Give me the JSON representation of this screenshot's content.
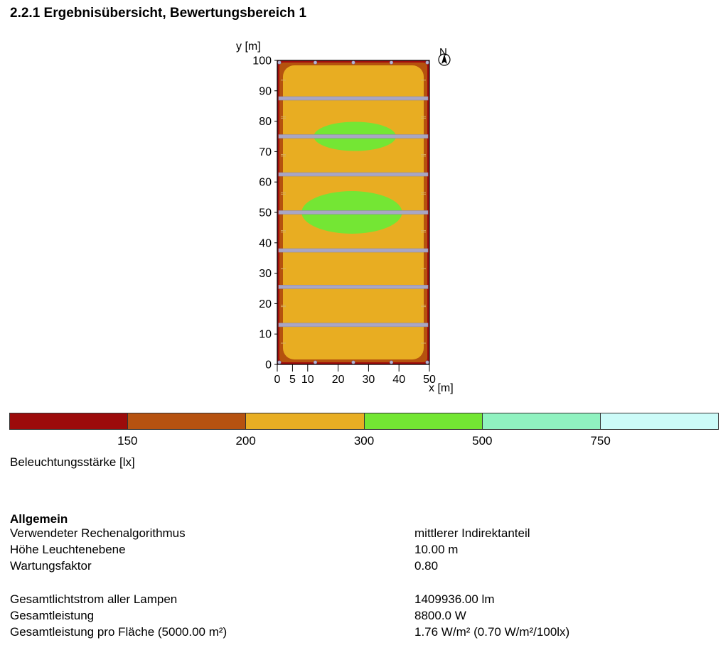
{
  "title": "2.2.1  Ergebnisübersicht, Bewertungsbereich 1",
  "chart_data": {
    "type": "heatmap",
    "xlabel": "x [m]",
    "ylabel": "y [m]",
    "xlim": [
      0,
      50
    ],
    "ylim": [
      0,
      100
    ],
    "x_ticks": [
      "0",
      "5",
      "10",
      "20",
      "30",
      "40",
      "50"
    ],
    "y_ticks": [
      "0",
      "10",
      "20",
      "30",
      "40",
      "50",
      "60",
      "70",
      "80",
      "90",
      "100"
    ],
    "north_label": "N",
    "luminaire_rows_y": [
      13,
      25.5,
      37.5,
      50,
      62.5,
      75,
      87.5
    ],
    "zones": {
      "edge_dark": "#a00d0d",
      "edge_mid": "#b5520e",
      "field": "#e8ad22",
      "high": "#74e634"
    }
  },
  "legend": {
    "colors": [
      "#9c0b0b",
      "#b65210",
      "#e8ae23",
      "#73e633",
      "#90f2c0",
      "#ccfbf8"
    ],
    "ticks": [
      "150",
      "200",
      "300",
      "500",
      "750"
    ],
    "label": "Beleuchtungsstärke [lx]"
  },
  "general": {
    "heading": "Allgemein",
    "rows": [
      {
        "label": "Verwendeter Rechenalgorithmus",
        "value": "mittlerer Indirektanteil"
      },
      {
        "label": "Höhe Leuchtenebene",
        "value": "10.00 m"
      },
      {
        "label": "Wartungsfaktor",
        "value": "0.80"
      },
      {
        "label": "Gesamtlichtstrom aller Lampen",
        "value": "1409936.00 lm"
      },
      {
        "label": "Gesamtleistung",
        "value": "8800.0 W"
      },
      {
        "label": "Gesamtleistung pro Fläche (5000.00 m²)",
        "value": "1.76 W/m² (0.70 W/m²/100lx)"
      }
    ]
  }
}
